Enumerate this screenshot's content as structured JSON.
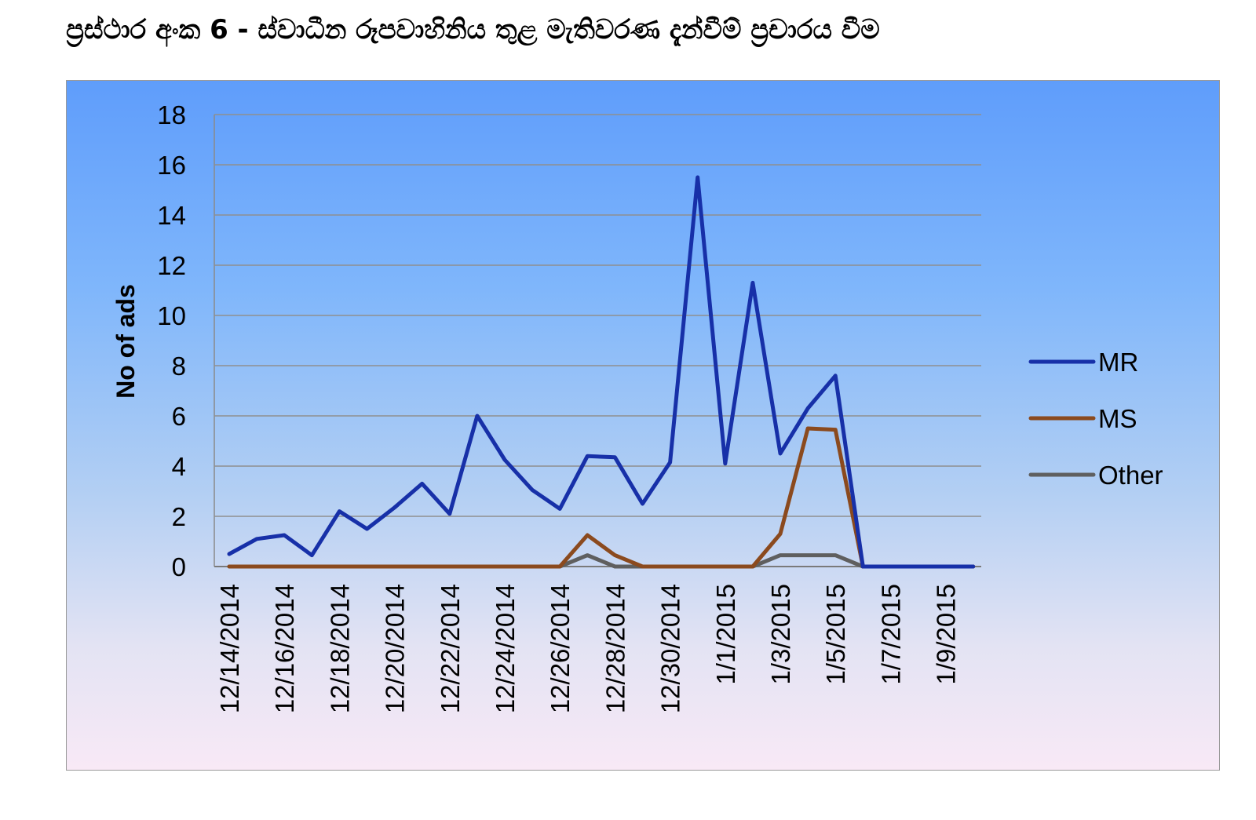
{
  "title": "ප්‍රස්ථාර අංක 6 - ස්වාධීන රූපවාහිනිය තුළ මැතිවරණ දැන්වීම් ප්‍රචාරය වීම",
  "chart_data": {
    "type": "line",
    "title": "",
    "xlabel": "",
    "ylabel": "No of ads",
    "ylim": [
      0,
      18
    ],
    "yticks": [
      0,
      2,
      4,
      6,
      8,
      10,
      12,
      14,
      16,
      18
    ],
    "grid": true,
    "legend_position": "right",
    "x": [
      "12/14/2014",
      "12/15/2014",
      "12/16/2014",
      "12/17/2014",
      "12/18/2014",
      "12/19/2014",
      "12/20/2014",
      "12/21/2014",
      "12/22/2014",
      "12/23/2014",
      "12/24/2014",
      "12/25/2014",
      "12/26/2014",
      "12/27/2014",
      "12/28/2014",
      "12/29/2014",
      "12/30/2014",
      "12/31/2014",
      "1/1/2015",
      "1/2/2015",
      "1/3/2015",
      "1/4/2015",
      "1/5/2015",
      "1/6/2015",
      "1/7/2015",
      "1/8/2015",
      "1/9/2015",
      "1/10/2015"
    ],
    "xtick_labels": [
      "12/14/2014",
      "12/16/2014",
      "12/18/2014",
      "12/20/2014",
      "12/22/2014",
      "12/24/2014",
      "12/26/2014",
      "12/28/2014",
      "12/30/2014",
      "1/1/2015",
      "1/3/2015",
      "1/5/2015",
      "1/7/2015",
      "1/9/2015"
    ],
    "series": [
      {
        "name": "MR",
        "color": "#1730a8",
        "values": [
          0.5,
          1.1,
          1.25,
          0.45,
          2.2,
          1.5,
          2.35,
          3.3,
          2.1,
          6.0,
          4.25,
          3.05,
          2.3,
          4.4,
          4.35,
          2.5,
          4.15,
          15.5,
          4.1,
          11.3,
          4.5,
          6.3,
          7.6,
          0,
          0,
          0,
          0,
          0
        ]
      },
      {
        "name": "MS",
        "color": "#8b4a1e",
        "values": [
          0,
          0,
          0,
          0,
          0,
          0,
          0,
          0,
          0,
          0,
          0,
          0,
          0,
          1.25,
          0.45,
          0,
          0,
          0,
          0,
          0,
          1.3,
          5.5,
          5.45,
          0,
          0,
          0,
          0,
          0
        ]
      },
      {
        "name": "Other",
        "color": "#5f5f5f",
        "values": [
          0,
          0,
          0,
          0,
          0,
          0,
          0,
          0,
          0,
          0,
          0,
          0,
          0,
          0.45,
          0,
          0,
          0,
          0,
          0,
          0,
          0.45,
          0.45,
          0.45,
          0,
          0,
          0,
          0,
          0
        ]
      }
    ]
  }
}
